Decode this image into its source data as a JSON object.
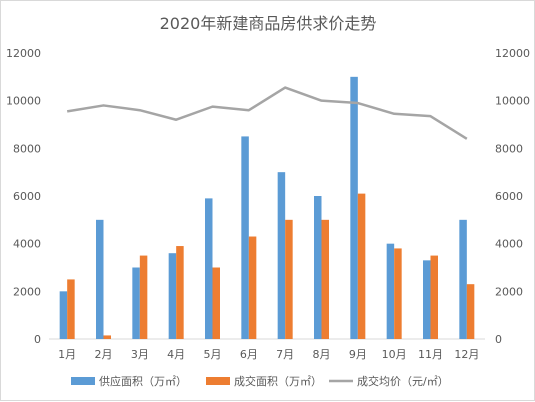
{
  "chart_data": {
    "type": "bar",
    "title": "2020年新建商品房供求价走势",
    "categories": [
      "1月",
      "2月",
      "3月",
      "4月",
      "5月",
      "6月",
      "7月",
      "8月",
      "9月",
      "10月",
      "11月",
      "12月"
    ],
    "series": [
      {
        "name": "供应面积（万㎡）",
        "kind": "bar",
        "axis": "left",
        "color": "#5b9bd5",
        "values": [
          2000,
          5000,
          3000,
          3600,
          5900,
          8500,
          7000,
          6000,
          11000,
          4000,
          3300,
          5000
        ]
      },
      {
        "name": "成交面积（万㎡）",
        "kind": "bar",
        "axis": "left",
        "color": "#ed7d31",
        "values": [
          2500,
          150,
          3500,
          3900,
          3000,
          4300,
          5000,
          5000,
          6100,
          3800,
          3500,
          2300
        ]
      },
      {
        "name": "成交均价（元/㎡）",
        "kind": "line",
        "axis": "right",
        "color": "#a5a5a5",
        "values": [
          9550,
          9800,
          9600,
          9200,
          9750,
          9600,
          10550,
          10000,
          9900,
          9450,
          9350,
          8400
        ]
      }
    ],
    "ylim_left": [
      0,
      12000
    ],
    "ylim_right": [
      0,
      12000
    ],
    "yticks": [
      "0",
      "2000",
      "4000",
      "6000",
      "8000",
      "10000",
      "12000"
    ],
    "grid": false,
    "legend": "bottom"
  }
}
